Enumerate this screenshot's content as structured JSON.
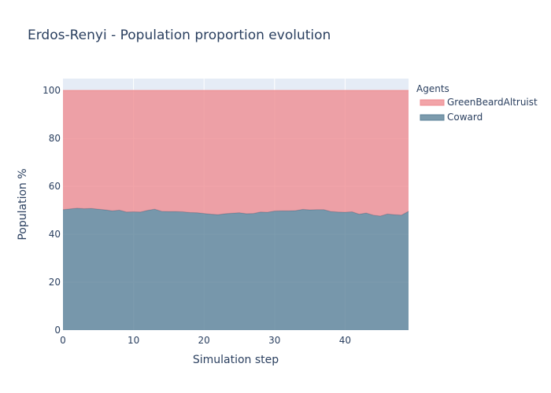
{
  "chart_data": {
    "type": "area",
    "title": "Erdos-Renyi - Population proportion evolution",
    "xlabel": "Simulation step",
    "ylabel": "Population %",
    "xlim": [
      0,
      49
    ],
    "ylim": [
      0,
      105
    ],
    "xticks": [
      0,
      10,
      20,
      30,
      40
    ],
    "yticks": [
      0,
      20,
      40,
      60,
      80,
      100
    ],
    "grid": true,
    "stacked": true,
    "legend": {
      "title": "Agents",
      "placement": "top-right"
    },
    "x": [
      0,
      1,
      2,
      3,
      4,
      5,
      6,
      7,
      8,
      9,
      10,
      11,
      12,
      13,
      14,
      15,
      16,
      17,
      18,
      19,
      20,
      21,
      22,
      23,
      24,
      25,
      26,
      27,
      28,
      29,
      30,
      31,
      32,
      33,
      34,
      35,
      36,
      37,
      38,
      39,
      40,
      41,
      42,
      43,
      44,
      45,
      46,
      47,
      48,
      49
    ],
    "series": [
      {
        "name": "Coward",
        "color": "#5b8298",
        "values": [
          50.3,
          50.6,
          50.9,
          50.7,
          50.8,
          50.5,
          50.2,
          49.8,
          50.1,
          49.3,
          49.4,
          49.3,
          50.0,
          50.5,
          49.6,
          49.5,
          49.5,
          49.4,
          49.1,
          49.0,
          48.7,
          48.4,
          48.2,
          48.6,
          48.8,
          49.0,
          48.6,
          48.7,
          49.3,
          49.2,
          49.7,
          49.8,
          49.8,
          49.9,
          50.4,
          50.2,
          50.3,
          50.3,
          49.5,
          49.3,
          49.2,
          49.4,
          48.4,
          48.9,
          48.0,
          47.6,
          48.5,
          48.2,
          48.0,
          49.6
        ]
      },
      {
        "name": "GreenBeardAltruist",
        "color": "#ef8d92",
        "values": [
          49.7,
          49.4,
          49.1,
          49.3,
          49.2,
          49.5,
          49.8,
          50.2,
          49.9,
          50.7,
          50.6,
          50.7,
          50.0,
          49.5,
          50.4,
          50.5,
          50.5,
          50.6,
          50.9,
          51.0,
          51.3,
          51.6,
          51.8,
          51.4,
          51.2,
          51.0,
          51.4,
          51.3,
          50.7,
          50.8,
          50.3,
          50.2,
          50.2,
          50.1,
          49.6,
          49.8,
          49.7,
          49.7,
          50.5,
          50.7,
          50.8,
          50.6,
          51.6,
          51.1,
          52.0,
          52.4,
          51.5,
          51.8,
          52.0,
          50.4
        ]
      }
    ]
  }
}
